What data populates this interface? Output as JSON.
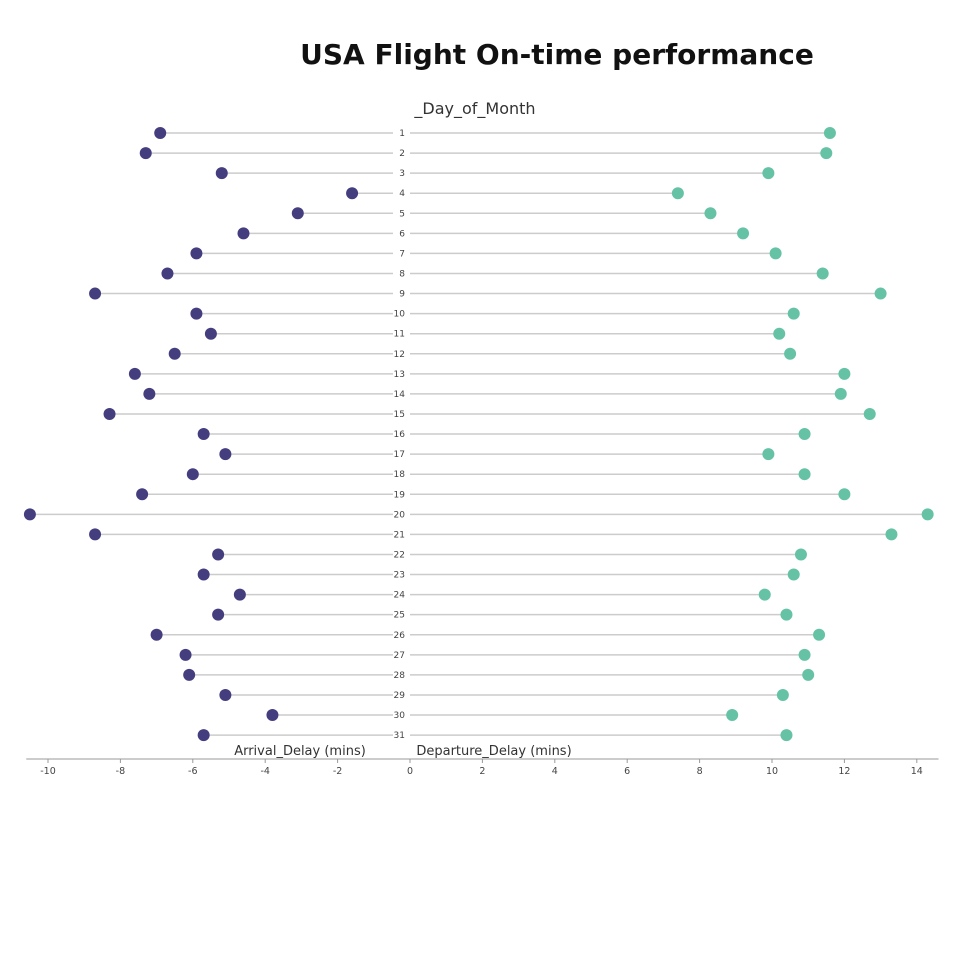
{
  "title": "USA Flight On-time performance",
  "colors": {
    "arrival_dot": "#443e7f",
    "departure_dot": "#66c2a5",
    "connector": "#cccccc",
    "axis_line": "#999999",
    "text": "#333333"
  },
  "chart_data": {
    "type": "scatter",
    "subtype": "diverging-lollipop",
    "title": "USA Flight On-time performance",
    "center_axis_label": "_Day_of_Month",
    "xlabel_left": "Arrival_Delay (mins)",
    "xlabel_right": "Departure_Delay (mins)",
    "xlim": [
      -10.6,
      14.6
    ],
    "x_ticks": [
      -10,
      -8,
      -6,
      -4,
      -2,
      0,
      2,
      4,
      6,
      8,
      10,
      12,
      14
    ],
    "grid": false,
    "legend": "none",
    "categories": [
      1,
      2,
      3,
      4,
      5,
      6,
      7,
      8,
      9,
      10,
      11,
      12,
      13,
      14,
      15,
      16,
      17,
      18,
      19,
      20,
      21,
      22,
      23,
      24,
      25,
      26,
      27,
      28,
      29,
      30,
      31
    ],
    "series": [
      {
        "name": "Arrival_Delay (mins)",
        "color": "#443e7f",
        "values": [
          -6.9,
          -7.3,
          -5.2,
          -1.6,
          -3.1,
          -4.6,
          -5.9,
          -6.7,
          -8.7,
          -5.9,
          -5.5,
          -6.5,
          -7.6,
          -7.2,
          -8.3,
          -5.7,
          -5.1,
          -6.0,
          -7.4,
          -10.5,
          -8.7,
          -5.3,
          -5.7,
          -4.7,
          -5.3,
          -7.0,
          -6.2,
          -6.1,
          -5.1,
          -3.8,
          -5.7
        ]
      },
      {
        "name": "Departure_Delay (mins)",
        "color": "#66c2a5",
        "values": [
          11.6,
          11.5,
          9.9,
          7.4,
          8.3,
          9.2,
          10.1,
          11.4,
          13.0,
          10.6,
          10.2,
          10.5,
          12.0,
          11.9,
          12.7,
          10.9,
          9.9,
          10.9,
          12.0,
          14.3,
          13.3,
          10.8,
          10.6,
          9.8,
          10.4,
          11.3,
          10.9,
          11.0,
          10.3,
          8.9,
          10.4
        ]
      }
    ]
  }
}
